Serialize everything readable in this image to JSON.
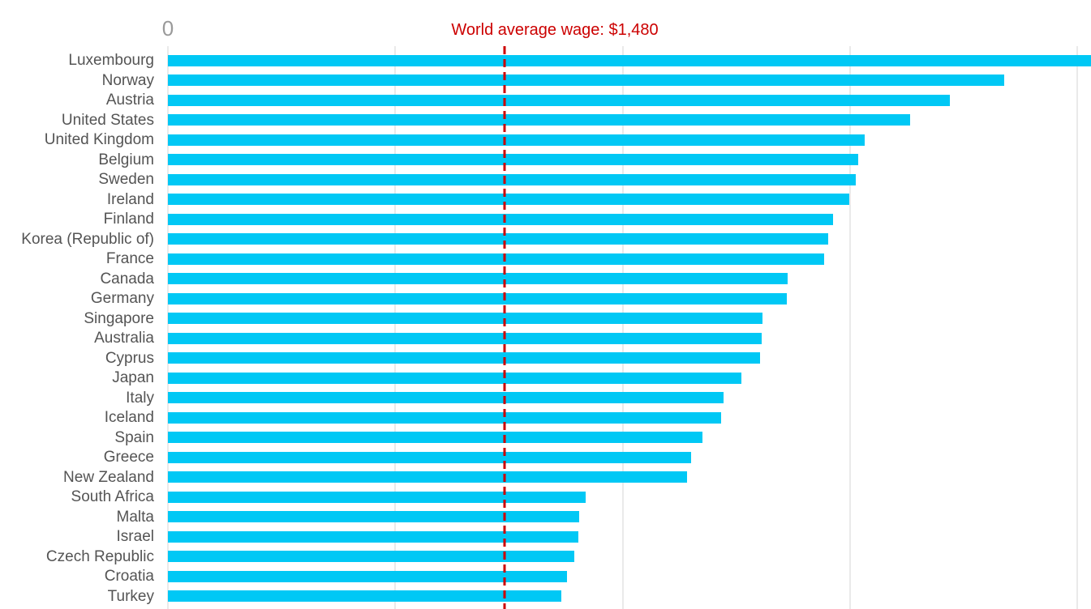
{
  "chart_data": {
    "type": "bar",
    "orientation": "horizontal",
    "categories": [
      "Luxembourg",
      "Norway",
      "Austria",
      "United States",
      "United Kingdom",
      "Belgium",
      "Sweden",
      "Ireland",
      "Finland",
      "Korea (Republic of)",
      "France",
      "Canada",
      "Germany",
      "Singapore",
      "Australia",
      "Cyprus",
      "Japan",
      "Italy",
      "Iceland",
      "Spain",
      "Greece",
      "New Zealand",
      "South Africa",
      "Malta",
      "Israel",
      "Czech Republic",
      "Croatia",
      "Turkey"
    ],
    "values": [
      4089,
      3678,
      3437,
      3263,
      3065,
      3035,
      3023,
      2997,
      2925,
      2903,
      2886,
      2724,
      2720,
      2616,
      2610,
      2605,
      2522,
      2445,
      2431,
      2352,
      2300,
      2283,
      1838,
      1808,
      1804,
      1786,
      1756,
      1731
    ],
    "x_axis": {
      "visible_tick_label": "0",
      "gridline_step": 1000,
      "xlim": [
        0,
        4059
      ],
      "grid": true
    },
    "annotation": {
      "label": "World average wage: $1,480",
      "value": 1480
    },
    "colors": {
      "bar": "#00c8f5",
      "annotation": "#cc0000",
      "grid": "#eaeaea",
      "category_label": "#545454",
      "tick_label": "#9a9a9a"
    }
  }
}
